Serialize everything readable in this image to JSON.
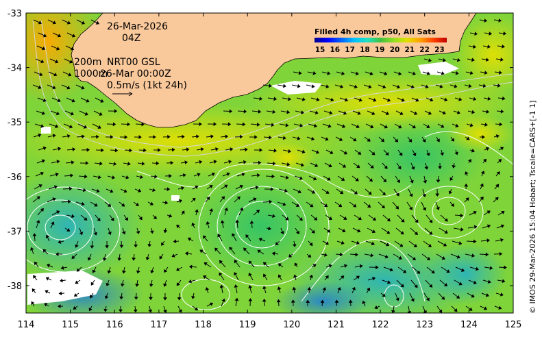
{
  "map": {
    "date": "26-Mar-2026",
    "time": "04Z",
    "contour_depths": [
      "200m",
      "1000m"
    ],
    "current_source": "NRT00 GSL",
    "current_time": "26-Mar 00:00Z",
    "scale_label": "0.5m/s (1kt 24h)",
    "x_ticks": [
      "114",
      "115",
      "116",
      "117",
      "118",
      "119",
      "120",
      "121",
      "122",
      "123",
      "124",
      "125"
    ],
    "y_ticks": [
      "-33",
      "-34",
      "-35",
      "-36",
      "-37",
      "-38"
    ],
    "credit": "© IMOS 29-Mar-2026 15:04 Hobart; Tscale=CARS+[-1 1]",
    "land_color": "#f9c89b"
  },
  "colorbar": {
    "title": "Filled 4h comp, p50, All Sats",
    "labels": [
      "15",
      "16",
      "17",
      "18",
      "19",
      "20",
      "21",
      "22",
      "23"
    ],
    "colors": [
      "#00008f",
      "#0000ff",
      "#0060ff",
      "#00c0ff",
      "#20e0c0",
      "#40c040",
      "#90e020",
      "#e0e000",
      "#ffa000",
      "#ff4000",
      "#c00000"
    ]
  }
}
